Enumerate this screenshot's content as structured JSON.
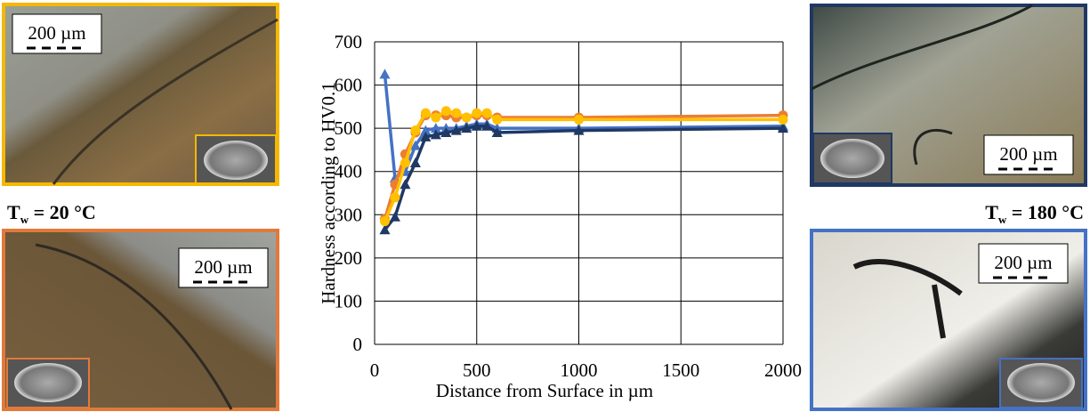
{
  "chart_data": {
    "type": "line",
    "x_label": "Distance from Surface in µm",
    "y_label": "Hardness according to HV0.1",
    "x": [
      50,
      100,
      150,
      200,
      250,
      300,
      350,
      400,
      450,
      500,
      550,
      600,
      1000,
      2000
    ],
    "series": [
      {
        "color": "#4472c4",
        "marker": "triangle",
        "values": [
          625,
          385,
          400,
          460,
          495,
          500,
          500,
          500,
          505,
          510,
          510,
          500,
          500,
          505
        ]
      },
      {
        "color": "#1f3864",
        "marker": "triangle",
        "values": [
          265,
          295,
          370,
          420,
          480,
          485,
          490,
          495,
          500,
          505,
          505,
          490,
          495,
          500
        ]
      },
      {
        "color": "#ed7d31",
        "marker": "circle",
        "values": [
          290,
          370,
          440,
          490,
          530,
          530,
          530,
          525,
          525,
          530,
          530,
          525,
          525,
          530
        ]
      },
      {
        "color": "#ffc000",
        "marker": "circle",
        "values": [
          285,
          340,
          420,
          495,
          535,
          525,
          540,
          535,
          525,
          535,
          535,
          520,
          520,
          520
        ]
      }
    ],
    "xlim": [
      0,
      2000
    ],
    "xticks": [
      0,
      500,
      1000,
      1500,
      2000
    ],
    "ylim": [
      0,
      700
    ],
    "yticks": [
      0,
      100,
      200,
      300,
      400,
      500,
      600,
      700
    ],
    "grid": true
  },
  "panels": [
    {
      "scale_bar": "200 µm"
    },
    {
      "scale_bar": "200 µm"
    },
    {
      "scale_bar": "200 µm"
    },
    {
      "scale_bar": "200 µm"
    }
  ],
  "labels": [
    {
      "main": "T",
      "sub": "w",
      "rest": " = 20 °C"
    },
    {
      "main": "T",
      "sub": "w",
      "rest": " = 180 °C"
    }
  ]
}
